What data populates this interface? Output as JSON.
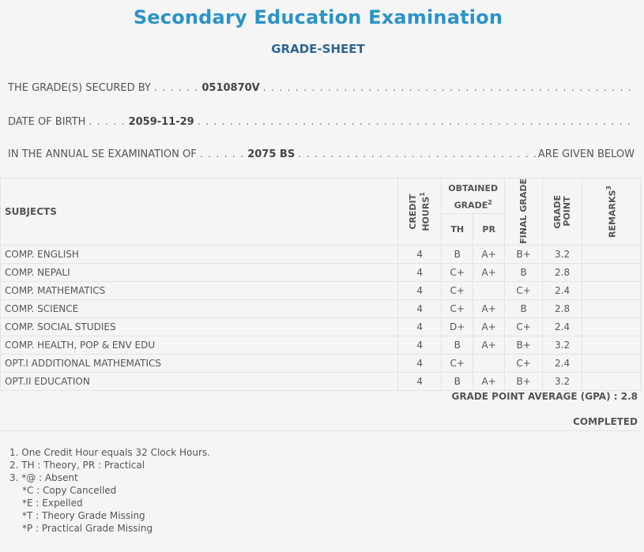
{
  "header": {
    "title": "Secondary Education Examination",
    "subtitle": "GRADE-SHEET"
  },
  "student": {
    "secured_label": "THE GRADE(S) SECURED BY",
    "symbol_no": "0510870V",
    "dob_label": "DATE OF BIRTH",
    "dob": "2059-11-29",
    "exam_label": "IN THE ANNUAL SE EXAMINATION OF",
    "exam_year": "2075 BS",
    "exam_suffix": "ARE GIVEN BELOW"
  },
  "table": {
    "subjects_header": "SUBJECTS",
    "credit_header": "CREDIT HOURS",
    "credit_sup": "1",
    "obtained_header": "OBTAINED GRADE",
    "obtained_sup": "2",
    "th_header": "TH",
    "pr_header": "PR",
    "final_header": "FINAL GRADE",
    "gp_header": "GRADE POINT",
    "remarks_header": "REMARKS",
    "remarks_sup": "3",
    "rows": [
      {
        "subject": "COMP. ENGLISH",
        "credit": "4",
        "th": "B",
        "pr": "A+",
        "final": "B+",
        "gp": "3.2",
        "remarks": ""
      },
      {
        "subject": "COMP. NEPALI",
        "credit": "4",
        "th": "C+",
        "pr": "A+",
        "final": "B",
        "gp": "2.8",
        "remarks": ""
      },
      {
        "subject": "COMP. MATHEMATICS",
        "credit": "4",
        "th": "C+",
        "pr": "",
        "final": "C+",
        "gp": "2.4",
        "remarks": ""
      },
      {
        "subject": "COMP. SCIENCE",
        "credit": "4",
        "th": "C+",
        "pr": "A+",
        "final": "B",
        "gp": "2.8",
        "remarks": ""
      },
      {
        "subject": "COMP. SOCIAL STUDIES",
        "credit": "4",
        "th": "D+",
        "pr": "A+",
        "final": "C+",
        "gp": "2.4",
        "remarks": ""
      },
      {
        "subject": "COMP. HEALTH, POP & ENV EDU",
        "credit": "4",
        "th": "B",
        "pr": "A+",
        "final": "B+",
        "gp": "3.2",
        "remarks": ""
      },
      {
        "subject": "OPT.I ADDITIONAL MATHEMATICS",
        "credit": "4",
        "th": "C+",
        "pr": "",
        "final": "C+",
        "gp": "2.4",
        "remarks": ""
      },
      {
        "subject": "OPT.II EDUCATION",
        "credit": "4",
        "th": "B",
        "pr": "A+",
        "final": "B+",
        "gp": "3.2",
        "remarks": ""
      }
    ]
  },
  "summary": {
    "gpa_label": "GRADE POINT AVERAGE (GPA) :",
    "gpa_value": "2.8",
    "status": "COMPLETED"
  },
  "notes": [
    "1. One Credit Hour equals 32 Clock Hours.",
    "2. TH : Theory, PR : Practical",
    "3. *@ : Absent",
    "*C : Copy Cancelled",
    "*E : Expelled",
    "*T : Theory Grade Missing",
    "*P : Practical Grade Missing"
  ],
  "colors": {
    "title": "#2b93c7",
    "subtitle": "#2f6592",
    "background": "#f5f5f5"
  }
}
